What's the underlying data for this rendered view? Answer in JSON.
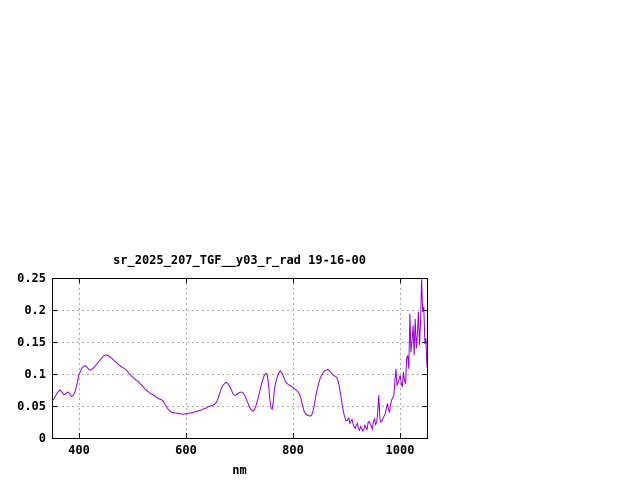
{
  "window": {
    "background": "#ffffff"
  },
  "chart_data": {
    "type": "line",
    "title": "sr_2025_207_TGF__y03_r_rad 19-16-00",
    "xlabel": "nm",
    "ylabel": "",
    "xlim": [
      350,
      1050
    ],
    "ylim": [
      0,
      0.25
    ],
    "x_ticks": [
      400,
      600,
      800,
      1000
    ],
    "x_tick_labels": [
      "400",
      "600",
      "800",
      "1000"
    ],
    "y_ticks": [
      0,
      0.05,
      0.1,
      0.15,
      0.2,
      0.25
    ],
    "y_tick_labels": [
      "0",
      "0.05",
      "0.1",
      "0.15",
      "0.2",
      "0.25"
    ],
    "grid": true,
    "grid_style": "dashed",
    "legend_position": "none",
    "line_color": "#9400d3",
    "grid_color": "#ababab",
    "border_color": "#000000",
    "text_color": "#000000",
    "series": [
      {
        "name": "sr_2025_207_TGF__y03_r_rad",
        "points": [
          [
            350,
            0.058
          ],
          [
            353,
            0.06
          ],
          [
            356,
            0.065
          ],
          [
            359,
            0.069
          ],
          [
            362,
            0.073
          ],
          [
            365,
            0.075
          ],
          [
            368,
            0.072
          ],
          [
            371,
            0.068
          ],
          [
            374,
            0.068
          ],
          [
            377,
            0.07
          ],
          [
            380,
            0.072
          ],
          [
            383,
            0.069
          ],
          [
            386,
            0.065
          ],
          [
            389,
            0.066
          ],
          [
            392,
            0.07
          ],
          [
            395,
            0.078
          ],
          [
            398,
            0.09
          ],
          [
            400,
            0.098
          ],
          [
            403,
            0.104
          ],
          [
            406,
            0.109
          ],
          [
            409,
            0.112
          ],
          [
            412,
            0.113
          ],
          [
            415,
            0.111
          ],
          [
            418,
            0.108
          ],
          [
            421,
            0.106
          ],
          [
            424,
            0.107
          ],
          [
            427,
            0.109
          ],
          [
            430,
            0.112
          ],
          [
            434,
            0.116
          ],
          [
            438,
            0.12
          ],
          [
            442,
            0.124
          ],
          [
            446,
            0.128
          ],
          [
            450,
            0.13
          ],
          [
            454,
            0.129
          ],
          [
            458,
            0.127
          ],
          [
            462,
            0.124
          ],
          [
            466,
            0.121
          ],
          [
            470,
            0.118
          ],
          [
            474,
            0.115
          ],
          [
            478,
            0.112
          ],
          [
            482,
            0.11
          ],
          [
            486,
            0.108
          ],
          [
            490,
            0.105
          ],
          [
            494,
            0.101
          ],
          [
            498,
            0.097
          ],
          [
            502,
            0.094
          ],
          [
            506,
            0.091
          ],
          [
            510,
            0.089
          ],
          [
            514,
            0.085
          ],
          [
            518,
            0.082
          ],
          [
            522,
            0.078
          ],
          [
            526,
            0.075
          ],
          [
            530,
            0.072
          ],
          [
            534,
            0.069
          ],
          [
            538,
            0.068
          ],
          [
            542,
            0.066
          ],
          [
            546,
            0.063
          ],
          [
            550,
            0.061
          ],
          [
            554,
            0.06
          ],
          [
            558,
            0.057
          ],
          [
            562,
            0.051
          ],
          [
            566,
            0.046
          ],
          [
            570,
            0.042
          ],
          [
            574,
            0.04
          ],
          [
            578,
            0.039
          ],
          [
            582,
            0.039
          ],
          [
            586,
            0.038
          ],
          [
            590,
            0.038
          ],
          [
            594,
            0.037
          ],
          [
            598,
            0.038
          ],
          [
            602,
            0.038
          ],
          [
            606,
            0.039
          ],
          [
            610,
            0.039
          ],
          [
            614,
            0.04
          ],
          [
            618,
            0.041
          ],
          [
            622,
            0.042
          ],
          [
            626,
            0.043
          ],
          [
            630,
            0.044
          ],
          [
            634,
            0.046
          ],
          [
            638,
            0.047
          ],
          [
            642,
            0.049
          ],
          [
            646,
            0.05
          ],
          [
            650,
            0.051
          ],
          [
            654,
            0.053
          ],
          [
            657,
            0.056
          ],
          [
            660,
            0.062
          ],
          [
            663,
            0.07
          ],
          [
            666,
            0.077
          ],
          [
            669,
            0.082
          ],
          [
            672,
            0.085
          ],
          [
            675,
            0.087
          ],
          [
            678,
            0.085
          ],
          [
            681,
            0.082
          ],
          [
            684,
            0.077
          ],
          [
            687,
            0.071
          ],
          [
            690,
            0.067
          ],
          [
            693,
            0.067
          ],
          [
            696,
            0.069
          ],
          [
            700,
            0.071
          ],
          [
            704,
            0.072
          ],
          [
            707,
            0.07
          ],
          [
            710,
            0.066
          ],
          [
            713,
            0.06
          ],
          [
            716,
            0.054
          ],
          [
            719,
            0.048
          ],
          [
            722,
            0.044
          ],
          [
            725,
            0.042
          ],
          [
            728,
            0.044
          ],
          [
            731,
            0.051
          ],
          [
            734,
            0.06
          ],
          [
            737,
            0.07
          ],
          [
            740,
            0.081
          ],
          [
            743,
            0.09
          ],
          [
            746,
            0.097
          ],
          [
            749,
            0.101
          ],
          [
            751,
            0.1
          ],
          [
            753,
            0.092
          ],
          [
            755,
            0.075
          ],
          [
            757,
            0.058
          ],
          [
            759,
            0.047
          ],
          [
            761,
            0.045
          ],
          [
            763,
            0.057
          ],
          [
            765,
            0.073
          ],
          [
            767,
            0.085
          ],
          [
            770,
            0.094
          ],
          [
            773,
            0.101
          ],
          [
            776,
            0.105
          ],
          [
            779,
            0.102
          ],
          [
            782,
            0.096
          ],
          [
            785,
            0.09
          ],
          [
            788,
            0.086
          ],
          [
            792,
            0.083
          ],
          [
            796,
            0.081
          ],
          [
            800,
            0.079
          ],
          [
            804,
            0.076
          ],
          [
            808,
            0.073
          ],
          [
            811,
            0.07
          ],
          [
            814,
            0.064
          ],
          [
            817,
            0.053
          ],
          [
            820,
            0.043
          ],
          [
            823,
            0.038
          ],
          [
            826,
            0.036
          ],
          [
            829,
            0.035
          ],
          [
            832,
            0.034
          ],
          [
            835,
            0.036
          ],
          [
            838,
            0.044
          ],
          [
            841,
            0.058
          ],
          [
            844,
            0.072
          ],
          [
            847,
            0.083
          ],
          [
            850,
            0.092
          ],
          [
            853,
            0.098
          ],
          [
            856,
            0.102
          ],
          [
            859,
            0.105
          ],
          [
            862,
            0.106
          ],
          [
            865,
            0.107
          ],
          [
            868,
            0.105
          ],
          [
            871,
            0.102
          ],
          [
            874,
            0.099
          ],
          [
            877,
            0.097
          ],
          [
            880,
            0.096
          ],
          [
            883,
            0.093
          ],
          [
            886,
            0.082
          ],
          [
            889,
            0.066
          ],
          [
            892,
            0.05
          ],
          [
            895,
            0.037
          ],
          [
            898,
            0.028
          ],
          [
            901,
            0.027
          ],
          [
            904,
            0.031
          ],
          [
            906,
            0.023
          ],
          [
            908,
            0.026
          ],
          [
            910,
            0.029
          ],
          [
            912,
            0.022
          ],
          [
            914,
            0.017
          ],
          [
            916,
            0.015
          ],
          [
            918,
            0.02
          ],
          [
            920,
            0.023
          ],
          [
            922,
            0.014
          ],
          [
            924,
            0.012
          ],
          [
            926,
            0.018
          ],
          [
            928,
            0.015
          ],
          [
            930,
            0.011
          ],
          [
            932,
            0.013
          ],
          [
            934,
            0.02
          ],
          [
            936,
            0.016
          ],
          [
            938,
            0.013
          ],
          [
            940,
            0.024
          ],
          [
            942,
            0.026
          ],
          [
            944,
            0.022
          ],
          [
            946,
            0.018
          ],
          [
            948,
            0.014
          ],
          [
            950,
            0.026
          ],
          [
            952,
            0.03
          ],
          [
            954,
            0.021
          ],
          [
            956,
            0.024
          ],
          [
            958,
            0.04
          ],
          [
            960,
            0.067
          ],
          [
            962,
            0.03
          ],
          [
            964,
            0.025
          ],
          [
            966,
            0.027
          ],
          [
            968,
            0.031
          ],
          [
            970,
            0.034
          ],
          [
            972,
            0.038
          ],
          [
            974,
            0.046
          ],
          [
            976,
            0.054
          ],
          [
            978,
            0.045
          ],
          [
            980,
            0.04
          ],
          [
            982,
            0.052
          ],
          [
            984,
            0.059
          ],
          [
            986,
            0.063
          ],
          [
            988,
            0.066
          ],
          [
            990,
            0.09
          ],
          [
            992,
            0.108
          ],
          [
            994,
            0.082
          ],
          [
            996,
            0.086
          ],
          [
            998,
            0.092
          ],
          [
            1000,
            0.098
          ],
          [
            1002,
            0.085
          ],
          [
            1004,
            0.08
          ],
          [
            1006,
            0.103
          ],
          [
            1008,
            0.09
          ],
          [
            1010,
            0.085
          ],
          [
            1012,
            0.125
          ],
          [
            1014,
            0.129
          ],
          [
            1016,
            0.108
          ],
          [
            1018,
            0.194
          ],
          [
            1020,
            0.134
          ],
          [
            1022,
            0.152
          ],
          [
            1024,
            0.176
          ],
          [
            1026,
            0.129
          ],
          [
            1028,
            0.186
          ],
          [
            1030,
            0.14
          ],
          [
            1032,
            0.162
          ],
          [
            1034,
            0.197
          ],
          [
            1036,
            0.145
          ],
          [
            1038,
            0.183
          ],
          [
            1040,
            0.25
          ],
          [
            1042,
            0.197
          ],
          [
            1044,
            0.205
          ],
          [
            1046,
            0.147
          ],
          [
            1048,
            0.156
          ],
          [
            1050,
            0.11
          ]
        ]
      }
    ]
  }
}
